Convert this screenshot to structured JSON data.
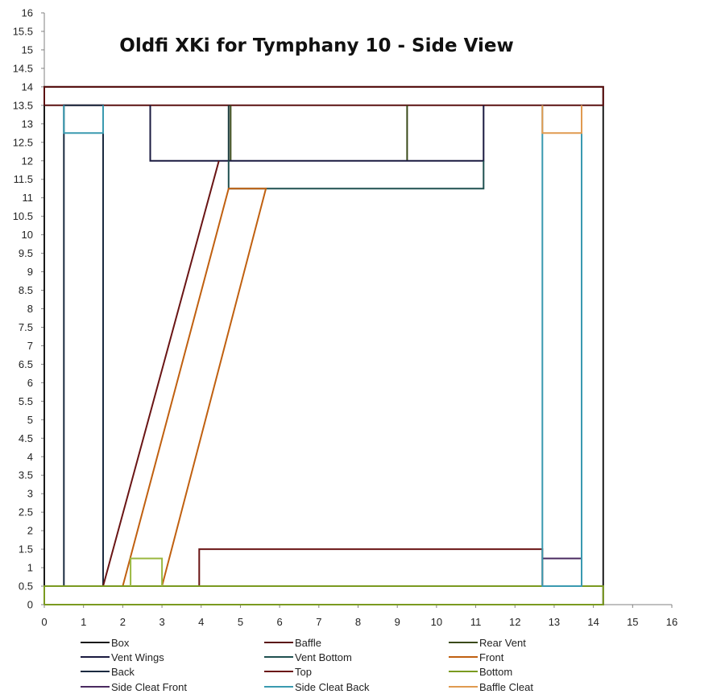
{
  "chart_data": {
    "type": "line",
    "title": "Oldfi XKi for Tymphany 10  -  Side View",
    "xlabel": "",
    "ylabel": "",
    "xlim": [
      0,
      16
    ],
    "ylim": [
      0,
      16
    ],
    "x_ticks": [
      "0",
      "1",
      "2",
      "3",
      "4",
      "5",
      "6",
      "7",
      "8",
      "9",
      "10",
      "11",
      "12",
      "13",
      "14",
      "15",
      "16"
    ],
    "y_ticks": [
      "0",
      "0.5",
      "1",
      "1.5",
      "2",
      "2.5",
      "3",
      "3.5",
      "4",
      "4.5",
      "5",
      "5.5",
      "6",
      "6.5",
      "7",
      "7.5",
      "8",
      "8.5",
      "9",
      "9.5",
      "10",
      "10.5",
      "11",
      "11.5",
      "12",
      "12.5",
      "13",
      "13.5",
      "14",
      "14.5",
      "15",
      "15.5",
      "16"
    ],
    "grid": false,
    "legend_position": "bottom",
    "series": [
      {
        "name": "Box",
        "color": "#1a1a1a",
        "x": [
          0,
          14.25,
          14.25,
          0,
          0
        ],
        "y": [
          0,
          0,
          14,
          14,
          0
        ]
      },
      {
        "name": "Baffle",
        "color": "#5a1010",
        "x": [
          0,
          14.25,
          14.25,
          0,
          0
        ],
        "y": [
          13.5,
          13.5,
          14,
          14,
          13.5
        ]
      },
      {
        "name": "Rear Vent",
        "color": "#3a4a1a",
        "x": [
          4.75,
          4.75,
          null,
          9.25,
          9.25
        ],
        "y": [
          13.5,
          12,
          null,
          13.5,
          12
        ]
      },
      {
        "name": "Vent Wings",
        "color": "#1a1a40",
        "x": [
          2.7,
          2.7,
          11.2,
          11.2
        ],
        "y": [
          13.5,
          12,
          12,
          13.5
        ]
      },
      {
        "name": "Vent Bottom",
        "color": "#1f5050",
        "x": [
          4.7,
          4.7,
          11.2,
          11.2
        ],
        "y": [
          12,
          11.25,
          11.25,
          12
        ]
      },
      {
        "name": "Front",
        "color": "#c06010",
        "x": [
          2.0,
          4.7,
          5.65,
          3.0
        ],
        "y": [
          0.5,
          11.25,
          11.25,
          0.5
        ]
      },
      {
        "name": "Back",
        "color": "#1a2a40",
        "x": [
          0.5,
          1.5,
          1.5,
          0.5,
          0.5
        ],
        "y": [
          0.5,
          0.5,
          13.5,
          13.5,
          0.5
        ]
      },
      {
        "name": "Top",
        "color": "#6a1515",
        "x": [
          1.5,
          4.45,
          null,
          3.95,
          3.95,
          12.7,
          12.7
        ],
        "y": [
          0.5,
          12,
          null,
          0.5,
          1.5,
          1.5,
          0.5
        ]
      },
      {
        "name": "Bottom",
        "color": "#7a9a20",
        "x": [
          0,
          14.25,
          14.25,
          0,
          0
        ],
        "y": [
          0,
          0,
          0.5,
          0.5,
          0
        ]
      },
      {
        "name": "Side Cleat Front",
        "color": "#4a2a60",
        "x": [
          12.7,
          13.7,
          13.7,
          12.7
        ],
        "y": [
          0.5,
          0.5,
          1.25,
          1.25
        ]
      },
      {
        "name": "Side Cleat Back",
        "color": "#3a9ab0",
        "x": [
          0.5,
          0.5,
          1.5,
          1.5,
          null,
          12.7,
          12.7,
          13.7,
          13.7
        ],
        "y": [
          13.5,
          12.75,
          12.75,
          13.5,
          null,
          13.5,
          0.5,
          0.5,
          13.5
        ]
      },
      {
        "name": "Baffle Cleat",
        "color": "#e09a50",
        "x": [
          12.7,
          12.7,
          13.7,
          13.7
        ],
        "y": [
          13.5,
          12.75,
          12.75,
          13.5
        ]
      }
    ],
    "extra_segments": [
      {
        "color": "#9ab840",
        "x": [
          2.2,
          2.2,
          3.0,
          3.0
        ],
        "y": [
          0.5,
          1.25,
          1.25,
          0.5
        ]
      },
      {
        "color": "#1a3a3a",
        "x": [
          4.7,
          4.7
        ],
        "y": [
          12,
          13.5
        ]
      }
    ]
  }
}
